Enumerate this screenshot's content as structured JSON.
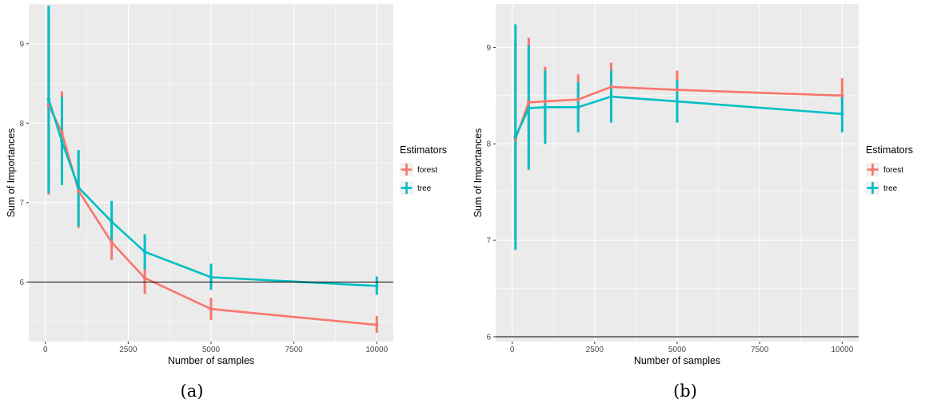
{
  "chart_data": [
    {
      "type": "line",
      "caption": "(a)",
      "xlabel": "Number of samples",
      "ylabel": "Sum of Importances",
      "xlim": [
        -500,
        10500
      ],
      "ylim": [
        5.25,
        9.5
      ],
      "xticks": [
        0,
        2500,
        5000,
        7500,
        10000
      ],
      "xtick_labels": [
        "0",
        "2500",
        "5000",
        "7500",
        "10000"
      ],
      "yticks": [
        6,
        7,
        8,
        9
      ],
      "ytick_labels": [
        "6",
        "7",
        "8",
        "9"
      ],
      "hline": 6,
      "legend": {
        "title": "Estimators",
        "placement": "right"
      },
      "x": [
        100,
        500,
        1000,
        2000,
        3000,
        5000,
        10000
      ],
      "series": [
        {
          "name": "forest",
          "color": "#F8766D",
          "values": [
            8.23,
            7.88,
            7.15,
            6.5,
            6.05,
            5.66,
            5.46
          ],
          "lower": [
            7.1,
            7.38,
            6.68,
            6.28,
            5.85,
            5.52,
            5.36
          ],
          "upper": [
            9.37,
            8.4,
            7.66,
            6.72,
            6.25,
            5.8,
            5.57
          ]
        },
        {
          "name": "tree",
          "color": "#00BFC4",
          "values": [
            8.3,
            7.77,
            7.19,
            6.76,
            6.38,
            6.06,
            5.95
          ],
          "lower": [
            7.12,
            7.22,
            6.7,
            6.5,
            6.16,
            5.9,
            5.84
          ],
          "upper": [
            9.48,
            8.33,
            7.66,
            7.02,
            6.6,
            6.23,
            6.07
          ]
        }
      ]
    },
    {
      "type": "line",
      "caption": "(b)",
      "xlabel": "Number of samples",
      "ylabel": "Sum of Importances",
      "xlim": [
        -500,
        10500
      ],
      "ylim": [
        5.95,
        9.45
      ],
      "xticks": [
        0,
        2500,
        5000,
        7500,
        10000
      ],
      "xtick_labels": [
        "0",
        "2500",
        "5000",
        "7500",
        "10000"
      ],
      "yticks": [
        6,
        7,
        8,
        9
      ],
      "ytick_labels": [
        "6",
        "7",
        "8",
        "9"
      ],
      "hline": 6,
      "legend": {
        "title": "Estimators",
        "placement": "right"
      },
      "x": [
        100,
        500,
        1000,
        2000,
        3000,
        5000,
        10000
      ],
      "series": [
        {
          "name": "forest",
          "color": "#F8766D",
          "values": [
            8.05,
            8.43,
            8.44,
            8.46,
            8.59,
            8.56,
            8.5
          ],
          "lower": [
            7.0,
            7.75,
            8.08,
            8.2,
            8.35,
            8.36,
            8.32
          ],
          "upper": [
            9.06,
            9.1,
            8.8,
            8.72,
            8.84,
            8.76,
            8.68
          ]
        },
        {
          "name": "tree",
          "color": "#00BFC4",
          "values": [
            8.07,
            8.37,
            8.38,
            8.38,
            8.49,
            8.44,
            8.31
          ],
          "lower": [
            6.9,
            7.73,
            8.0,
            8.12,
            8.22,
            8.22,
            8.12
          ],
          "upper": [
            9.24,
            9.02,
            8.76,
            8.64,
            8.76,
            8.66,
            8.5
          ]
        }
      ]
    }
  ]
}
